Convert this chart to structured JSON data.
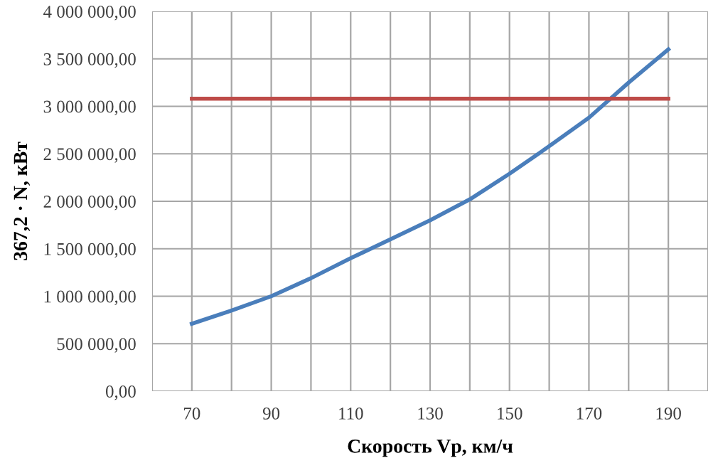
{
  "chart_data": {
    "type": "line",
    "xlabel": "Скорость Vp, км/ч",
    "ylabel": "367,2 · N, кВт",
    "series": [
      {
        "color": "#4a7ebb",
        "x": [
          70,
          80,
          90,
          100,
          110,
          120,
          130,
          140,
          150,
          160,
          170,
          180,
          190
        ],
        "values": [
          710000,
          850000,
          1000000,
          1190000,
          1400000,
          1600000,
          1800000,
          2020000,
          2290000,
          2580000,
          2880000,
          3250000,
          3600000
        ]
      },
      {
        "color": "#be4b48",
        "x": [
          70,
          190
        ],
        "values": [
          3080000,
          3080000
        ]
      }
    ],
    "xlim": [
      60,
      200
    ],
    "xticks": [
      {
        "value": 60,
        "label": null
      },
      70,
      {
        "value": 80,
        "label": null
      },
      90,
      {
        "value": 100,
        "label": null
      },
      110,
      {
        "value": 120,
        "label": null
      },
      130,
      {
        "value": 140,
        "label": null
      },
      150,
      {
        "value": 160,
        "label": null
      },
      170,
      {
        "value": 180,
        "label": null
      },
      190,
      {
        "value": 200,
        "label": null
      }
    ],
    "ylim": [
      0,
      4000000
    ],
    "yticks": [
      {
        "value": 0,
        "label": "0,00"
      },
      {
        "value": 500000,
        "label": "500 000,00"
      },
      {
        "value": 1000000,
        "label": "1 000 000,00"
      },
      {
        "value": 1500000,
        "label": "1 500 000,00"
      },
      {
        "value": 2000000,
        "label": "2 000 000,00"
      },
      {
        "value": 2500000,
        "label": "2 500 000,00"
      },
      {
        "value": 3000000,
        "label": "3 000 000,00"
      },
      {
        "value": 3500000,
        "label": "3 500 000,00"
      },
      {
        "value": 4000000,
        "label": "4 000 000,00"
      }
    ],
    "grid": true,
    "marker": "none",
    "line_style": "solid"
  }
}
